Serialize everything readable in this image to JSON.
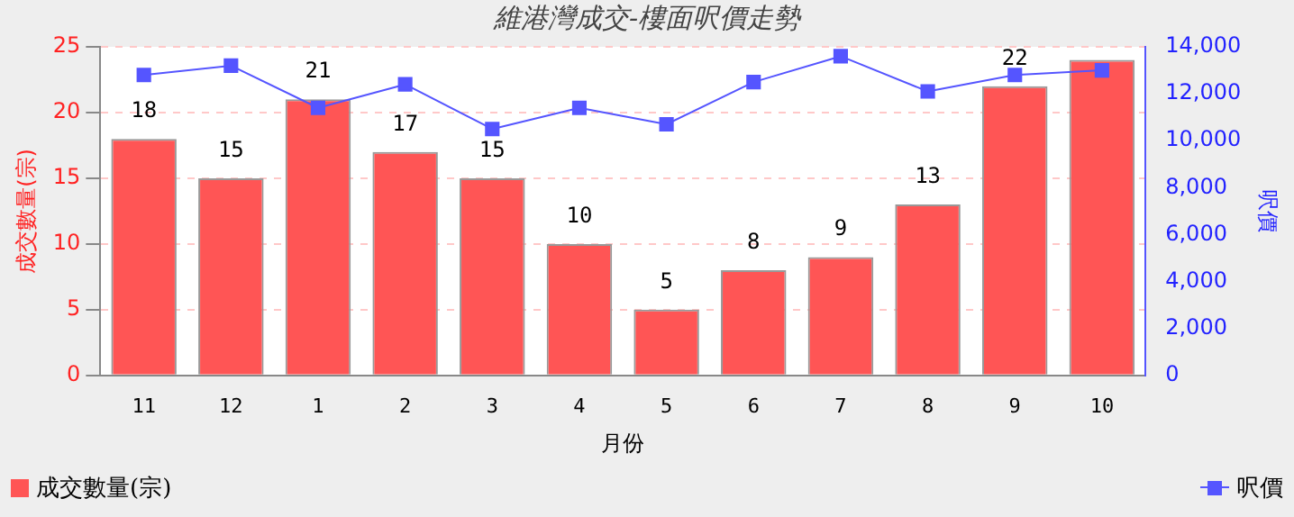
{
  "chart_data": {
    "type": "bar",
    "title": "維港灣成交-樓面呎價走勢",
    "xlabel": "月份",
    "ylabel": "成交數量(宗)",
    "y2label": "呎價",
    "categories": [
      "11",
      "12",
      "1",
      "2",
      "3",
      "4",
      "5",
      "6",
      "7",
      "8",
      "9",
      "10"
    ],
    "series": [
      {
        "name": "成交數量(宗)",
        "color": "#ff5555",
        "values": [
          18,
          15,
          21,
          17,
          15,
          10,
          5,
          8,
          9,
          13,
          22,
          24
        ],
        "value_labels": [
          "18",
          "15",
          "21",
          "17",
          "15",
          "10",
          "5",
          "8",
          "9",
          "13",
          "22",
          null
        ]
      },
      {
        "name": "呎價",
        "type": "line",
        "axis": "y2",
        "color": "#5555ff",
        "marker": "square",
        "values": [
          12800,
          13200,
          11400,
          12400,
          10500,
          11400,
          10700,
          12500,
          13600,
          12100,
          12800,
          13000
        ]
      }
    ],
    "ylim": [
      0,
      25
    ],
    "yticks": [
      0,
      5,
      10,
      15,
      20,
      25
    ],
    "y2lim": [
      0,
      14000
    ],
    "y2ticks": [
      0,
      {
        "value": 2000,
        "label": "2,000"
      },
      {
        "value": 4000,
        "label": "4,000"
      },
      {
        "value": 6000,
        "label": "6,000"
      },
      {
        "value": 8000,
        "label": "8,000"
      },
      {
        "value": 10000,
        "label": "10,000"
      },
      {
        "value": 12000,
        "label": "12,000"
      },
      {
        "value": 14000,
        "label": "14,000"
      }
    ],
    "grid": "y",
    "legend": "bottom"
  }
}
